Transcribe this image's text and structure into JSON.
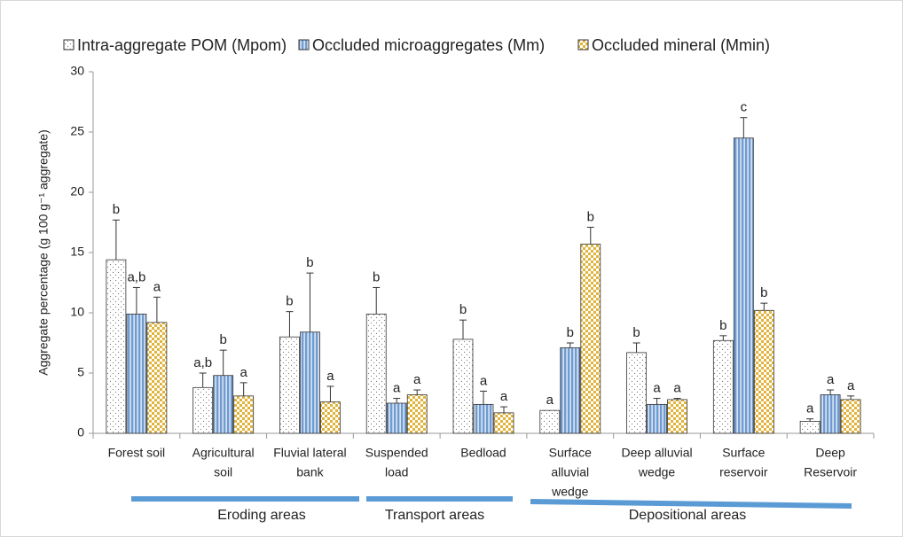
{
  "chart_data": {
    "type": "bar",
    "ylabel": "Aggregate percentage  (g 100 g⁻¹ aggregate)",
    "categories": [
      [
        "Forest soil"
      ],
      [
        "Agricultural",
        "soil"
      ],
      [
        "Fluvial lateral",
        "bank"
      ],
      [
        "Suspended",
        "load"
      ],
      [
        "Bedload"
      ],
      [
        "Surface",
        "alluvial",
        "wedge"
      ],
      [
        "Deep alluvial",
        "wedge"
      ],
      [
        "Surface",
        "reservoir"
      ],
      [
        "Deep",
        "Reservoir"
      ]
    ],
    "series": [
      {
        "name": "Intra-aggregate POM (Mpom)",
        "color": "#ffffff",
        "values": [
          14.4,
          3.8,
          8.0,
          9.9,
          7.8,
          1.9,
          6.7,
          7.7,
          1.0
        ],
        "errors": [
          3.3,
          1.2,
          2.1,
          2.2,
          1.6,
          null,
          0.8,
          0.4,
          0.2
        ],
        "letters": [
          "b",
          "a,b",
          "b",
          "b",
          "b",
          "a",
          "b",
          "b",
          "a"
        ]
      },
      {
        "name": "Occluded microaggregates (Mm)",
        "color": "#6f9bd1",
        "values": [
          9.9,
          4.8,
          8.4,
          2.5,
          2.4,
          7.1,
          2.4,
          24.5,
          3.2
        ],
        "errors": [
          2.2,
          2.1,
          4.9,
          0.4,
          1.1,
          0.4,
          0.5,
          1.7,
          0.4
        ],
        "letters": [
          "a,b",
          "b",
          "b",
          "a",
          "a",
          "b",
          "a",
          "c",
          "a"
        ]
      },
      {
        "name": "Occluded mineral (Mmin)",
        "color": "#e0b43c",
        "values": [
          9.2,
          3.1,
          2.6,
          3.2,
          1.7,
          15.7,
          2.8,
          10.2,
          2.8
        ],
        "errors": [
          2.1,
          1.1,
          1.3,
          0.4,
          0.5,
          1.4,
          0.1,
          0.6,
          0.3
        ],
        "letters": [
          "a",
          "a",
          "a",
          "a",
          "a",
          "b",
          "a",
          "b",
          "a"
        ]
      }
    ],
    "ylim": [
      0,
      30
    ],
    "yticks": [
      0,
      5,
      10,
      15,
      20,
      25,
      30
    ],
    "groups": [
      "Eroding areas",
      "Transport areas",
      "Depositional areas"
    ],
    "group_color": "#5b9bd5",
    "grid": false
  }
}
